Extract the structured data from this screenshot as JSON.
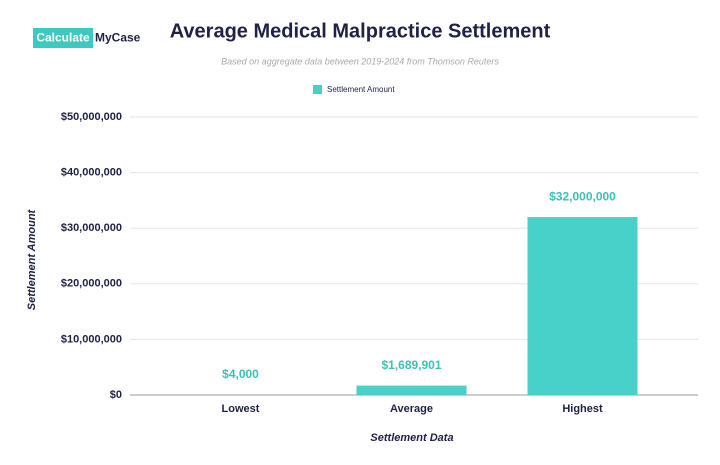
{
  "brand": {
    "left": "Calculate",
    "right": "MyCase"
  },
  "chart_data": {
    "type": "bar",
    "title": "Average Medical Malpractice Settlement",
    "subtitle": "Based on aggregate data between 2019-2024 from Thomson Reuters",
    "x_label": "Settlement Data",
    "y_label": "Settlement Amount",
    "categories": [
      "Lowest",
      "Average",
      "Highest"
    ],
    "series": [
      {
        "name": "Settlement Amount",
        "color": "#48d1c8",
        "values": [
          4000,
          1689901,
          32000000
        ],
        "value_labels": [
          "$4,000",
          "$1,689,901",
          "$32,000,000"
        ]
      }
    ],
    "ylim": [
      0,
      50000000
    ],
    "yticks": [
      {
        "value": 0,
        "label": "$0"
      },
      {
        "value": 10000000,
        "label": "$10,000,000"
      },
      {
        "value": 20000000,
        "label": "$20,000,000"
      },
      {
        "value": 30000000,
        "label": "$30,000,000"
      },
      {
        "value": 40000000,
        "label": "$40,000,000"
      },
      {
        "value": 50000000,
        "label": "$50,000,000"
      }
    ],
    "grid": true,
    "legend": "top"
  }
}
